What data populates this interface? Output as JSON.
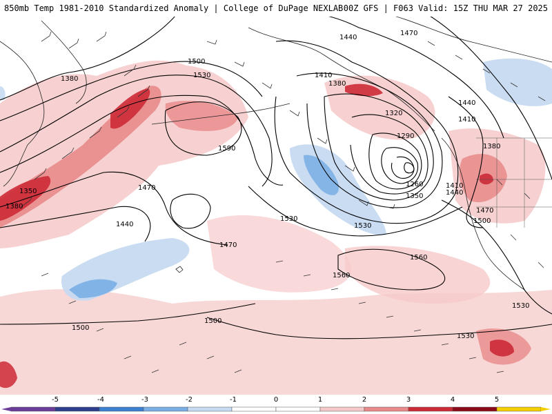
{
  "header": {
    "title": "850mb Temp 1981-2010 Standardized Anomaly | College of DuPage NEXLAB",
    "run_info": "00Z GFS | F063 Valid: 15Z THU MAR 27 2025"
  },
  "colorbar": {
    "ticks": [
      "-5",
      "-4",
      "-3",
      "-2",
      "-1",
      "0",
      "1",
      "2",
      "3",
      "4",
      "5"
    ],
    "colors": [
      "#6a3d9a",
      "#2c3e8c",
      "#3b7fd1",
      "#79aee4",
      "#c6daf1",
      "#ffffff",
      "#ffffff",
      "#f6c9c9",
      "#e88a8a",
      "#cc2a36",
      "#8b0a1a",
      "#f5d000"
    ]
  },
  "contour_labels": [
    {
      "id": "c1380-a",
      "text": "1380"
    },
    {
      "id": "c1500-a",
      "text": "1500"
    },
    {
      "id": "c1530-a",
      "text": "1530"
    },
    {
      "id": "c1590",
      "text": "1590"
    },
    {
      "id": "c1470-a",
      "text": "1470"
    },
    {
      "id": "c1350-a",
      "text": "1350"
    },
    {
      "id": "c1380-b",
      "text": "1380"
    },
    {
      "id": "c1440-a",
      "text": "1440"
    },
    {
      "id": "c1470-b",
      "text": "1470"
    },
    {
      "id": "c1530-b",
      "text": "1530"
    },
    {
      "id": "c1440-b",
      "text": "1440"
    },
    {
      "id": "c1470-c",
      "text": "1470"
    },
    {
      "id": "c1410-a",
      "text": "1410"
    },
    {
      "id": "c1380-c",
      "text": "1380"
    },
    {
      "id": "c1320",
      "text": "1320"
    },
    {
      "id": "c1290",
      "text": "1290"
    },
    {
      "id": "c1260",
      "text": "1260"
    },
    {
      "id": "c1350-b",
      "text": "1350"
    },
    {
      "id": "c1410-b",
      "text": "1410"
    },
    {
      "id": "c1440-c",
      "text": "1440"
    },
    {
      "id": "c1440-d",
      "text": "1440"
    },
    {
      "id": "c1410-c",
      "text": "1410"
    },
    {
      "id": "c1380-d",
      "text": "1380"
    },
    {
      "id": "c1470-d",
      "text": "1470"
    },
    {
      "id": "c1500-b",
      "text": "1500"
    },
    {
      "id": "c1530-c",
      "text": "1530"
    },
    {
      "id": "c1560-a",
      "text": "1560"
    },
    {
      "id": "c1560-b",
      "text": "1560"
    },
    {
      "id": "c1530-d",
      "text": "1530"
    },
    {
      "id": "c1500-c",
      "text": "1500"
    },
    {
      "id": "c1500-d",
      "text": "1500"
    },
    {
      "id": "c1530-e",
      "text": "1530"
    }
  ]
}
